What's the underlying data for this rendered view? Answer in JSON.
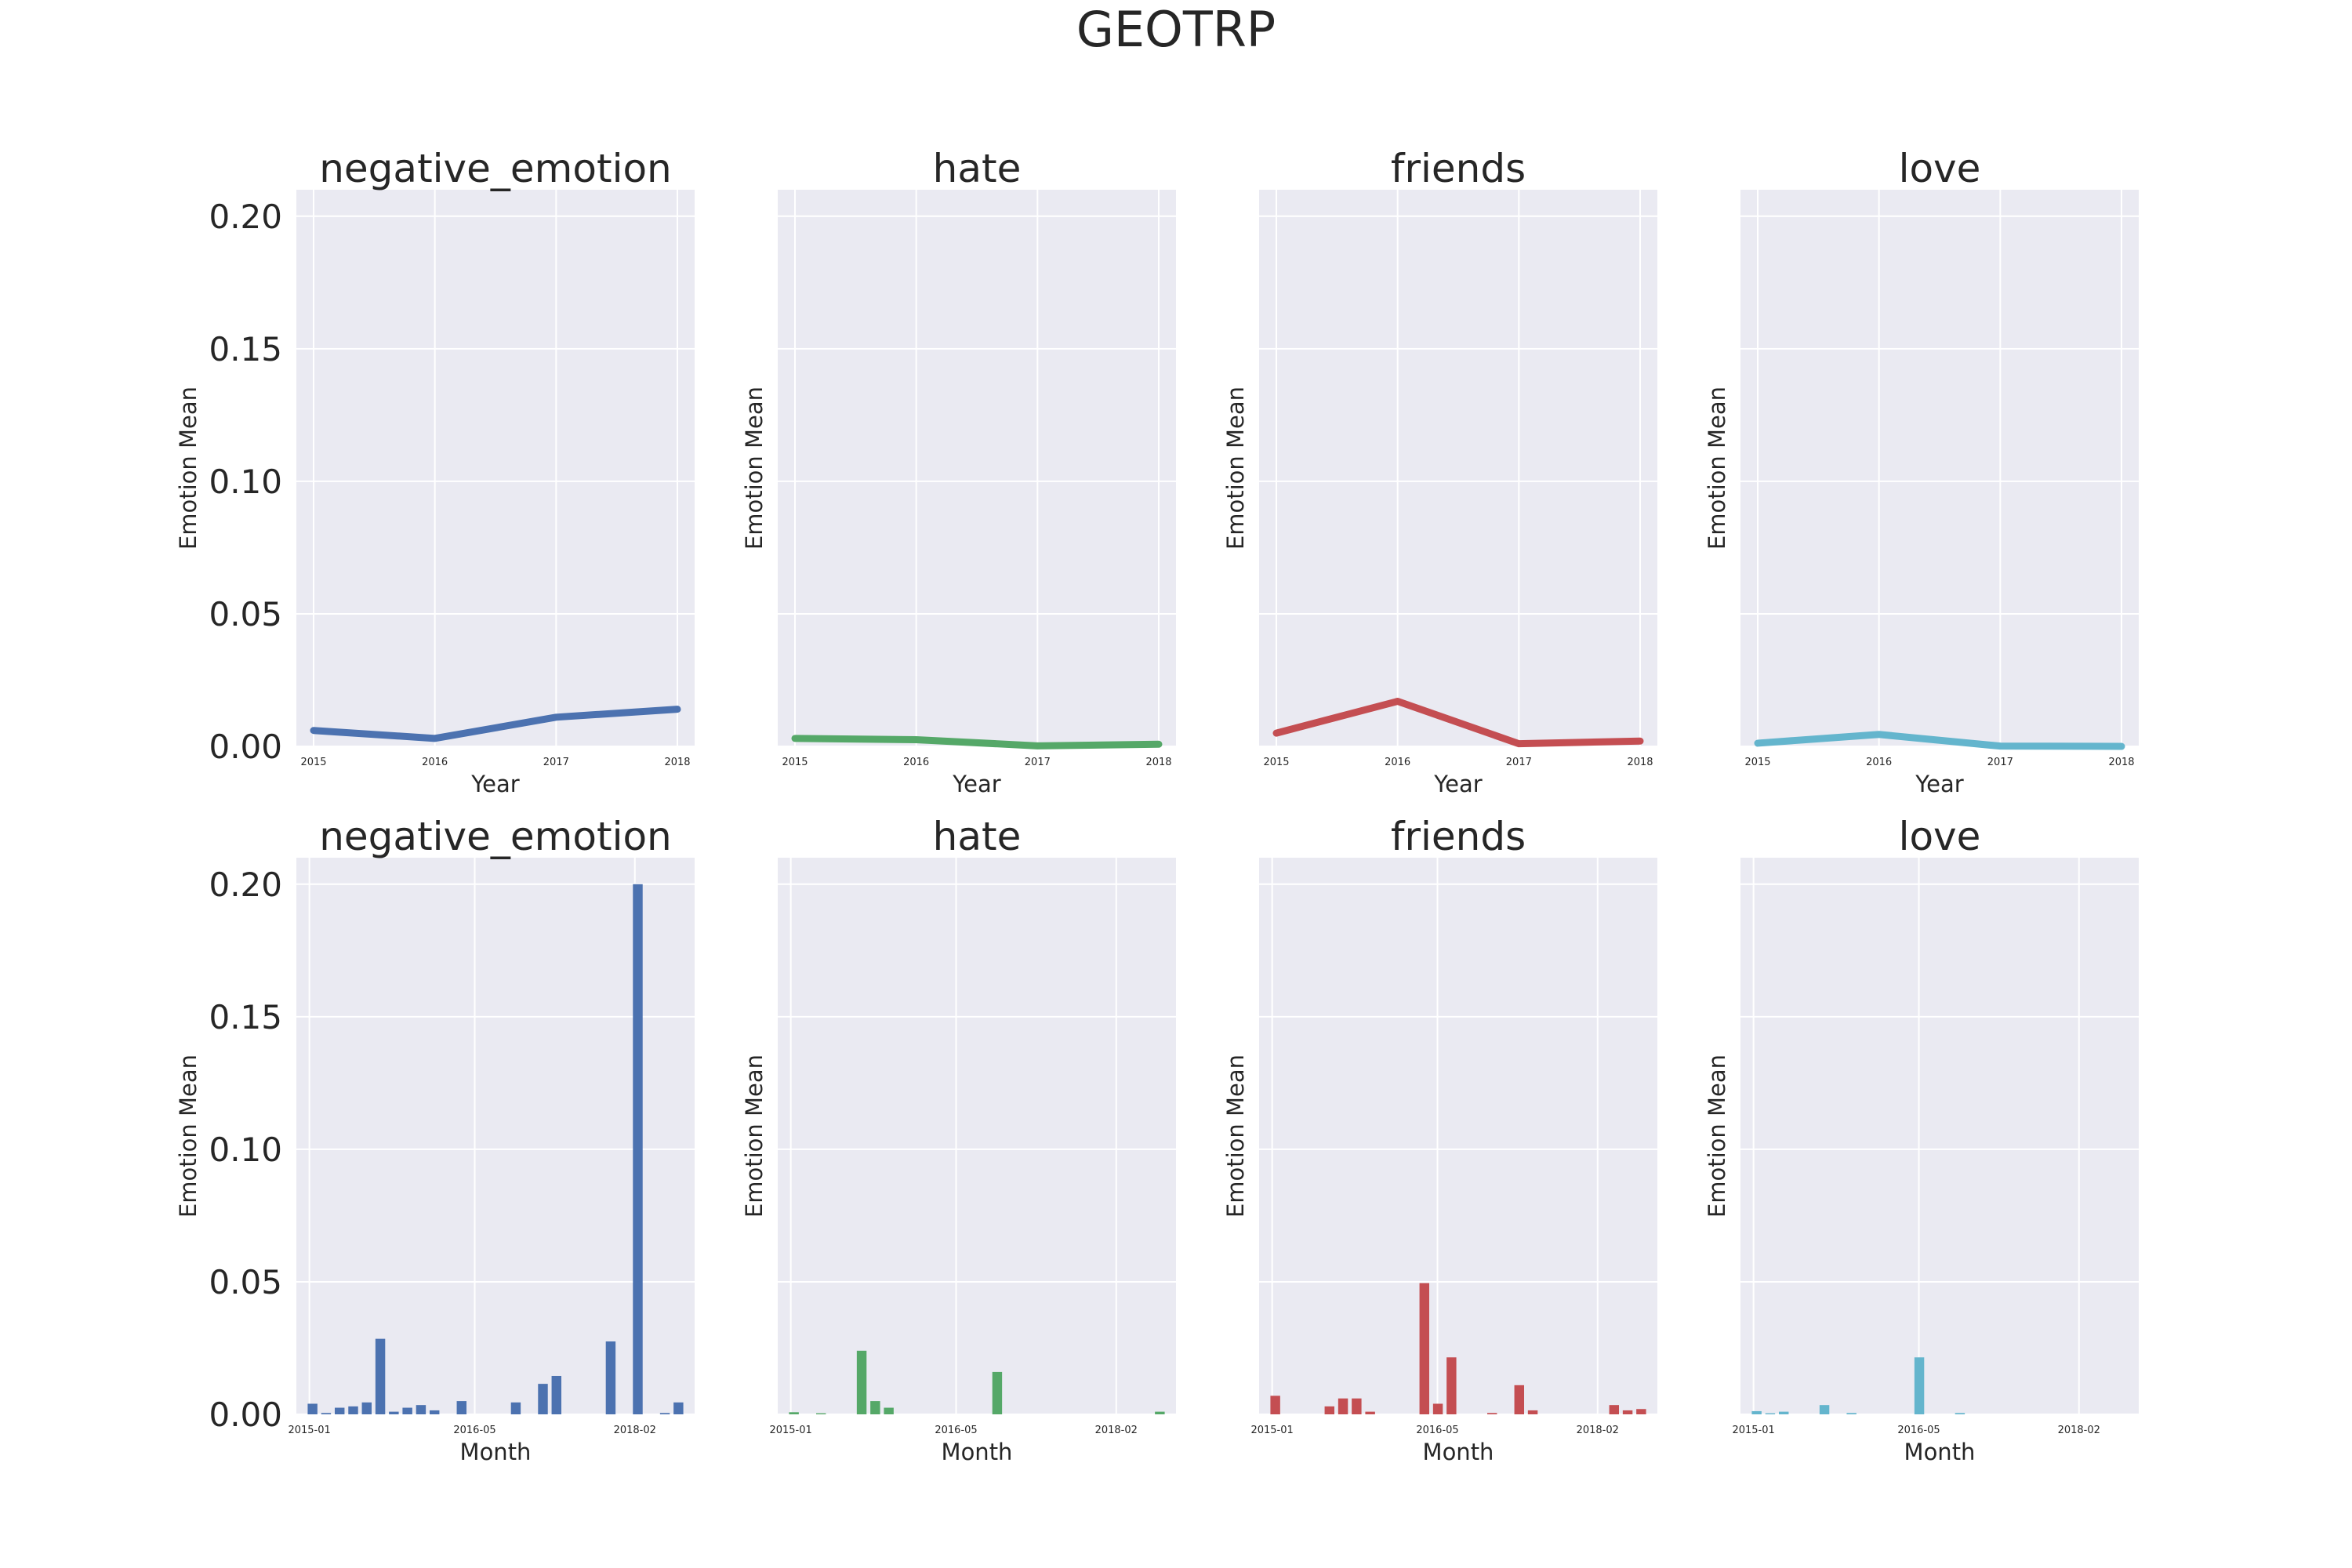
{
  "figure": {
    "title": "GEOTRP"
  },
  "colors": {
    "negative_emotion": "#4c72b0",
    "hate": "#55a868",
    "friends": "#c44e52",
    "love": "#64b5cd",
    "axes_bg": "#eaeaf2",
    "grid": "#ffffff"
  },
  "chart_data": [
    {
      "type": "line",
      "title": "negative_emotion",
      "xlabel": "Year",
      "ylabel": "Emotion Mean",
      "x": [
        "2015",
        "2016",
        "2017",
        "2018"
      ],
      "values": [
        0.006,
        0.003,
        0.011,
        0.014
      ],
      "ylim": [
        0,
        0.21
      ],
      "yticks": [
        "0.00",
        "0.05",
        "0.10",
        "0.15",
        "0.20"
      ],
      "show_ytick_labels": true,
      "grid": true
    },
    {
      "type": "line",
      "title": "hate",
      "xlabel": "Year",
      "ylabel": "Emotion Mean",
      "x": [
        "2015",
        "2016",
        "2017",
        "2018"
      ],
      "values": [
        0.003,
        0.0025,
        0.0002,
        0.0008
      ],
      "ylim": [
        0,
        0.21
      ],
      "yticks": [
        "0.00",
        "0.05",
        "0.10",
        "0.15",
        "0.20"
      ],
      "show_ytick_labels": false,
      "grid": true
    },
    {
      "type": "line",
      "title": "friends",
      "xlabel": "Year",
      "ylabel": "Emotion Mean",
      "x": [
        "2015",
        "2016",
        "2017",
        "2018"
      ],
      "values": [
        0.005,
        0.017,
        0.001,
        0.002
      ],
      "ylim": [
        0,
        0.21
      ],
      "yticks": [
        "0.00",
        "0.05",
        "0.10",
        "0.15",
        "0.20"
      ],
      "show_ytick_labels": false,
      "grid": true
    },
    {
      "type": "line",
      "title": "love",
      "xlabel": "Year",
      "ylabel": "Emotion Mean",
      "x": [
        "2015",
        "2016",
        "2017",
        "2018"
      ],
      "values": [
        0.0012,
        0.0045,
        0.0001,
        0.0
      ],
      "ylim": [
        0,
        0.21
      ],
      "yticks": [
        "0.00",
        "0.05",
        "0.10",
        "0.15",
        "0.20"
      ],
      "show_ytick_labels": false,
      "grid": true
    },
    {
      "type": "bar",
      "title": "negative_emotion",
      "xlabel": "Month",
      "ylabel": "Emotion Mean",
      "xticks": [
        "2015-01",
        "2016-05",
        "2018-02"
      ],
      "values": [
        0.004,
        0.0005,
        0.0025,
        0.003,
        0.0045,
        0.0285,
        0.001,
        0.0025,
        0.0035,
        0.0015,
        0,
        0.005,
        0,
        0,
        0,
        0.0045,
        0,
        0.0115,
        0.0145,
        0,
        0,
        0,
        0.0275,
        0,
        0.2,
        0,
        0.0005,
        0.0045
      ],
      "ylim": [
        0,
        0.21
      ],
      "yticks": [
        "0.00",
        "0.05",
        "0.10",
        "0.15",
        "0.20"
      ],
      "show_ytick_labels": true,
      "grid": true
    },
    {
      "type": "bar",
      "title": "hate",
      "xlabel": "Month",
      "ylabel": "Emotion Mean",
      "xticks": [
        "2015-01",
        "2016-05",
        "2018-02"
      ],
      "values": [
        0.0008,
        0,
        0.0004,
        0,
        0,
        0.024,
        0.005,
        0.0025,
        0,
        0,
        0,
        0,
        0,
        0,
        0,
        0.016,
        0,
        0,
        0,
        0,
        0,
        0,
        0,
        0,
        0,
        0,
        0,
        0.001
      ],
      "ylim": [
        0,
        0.21
      ],
      "yticks": [
        "0.00",
        "0.05",
        "0.10",
        "0.15",
        "0.20"
      ],
      "show_ytick_labels": false,
      "grid": true
    },
    {
      "type": "bar",
      "title": "friends",
      "xlabel": "Month",
      "ylabel": "Emotion Mean",
      "xticks": [
        "2015-01",
        "2016-05",
        "2018-02"
      ],
      "values": [
        0.007,
        0,
        0,
        0,
        0.003,
        0.006,
        0.006,
        0.001,
        0,
        0,
        0,
        0.0495,
        0.004,
        0.0215,
        0,
        0,
        0.0005,
        0,
        0.011,
        0.0015,
        0,
        0,
        0,
        0,
        0,
        0.0035,
        0.0015,
        0.002
      ],
      "ylim": [
        0,
        0.21
      ],
      "yticks": [
        "0.00",
        "0.05",
        "0.10",
        "0.15",
        "0.20"
      ],
      "show_ytick_labels": false,
      "grid": true
    },
    {
      "type": "bar",
      "title": "love",
      "xlabel": "Month",
      "ylabel": "Emotion Mean",
      "xticks": [
        "2015-01",
        "2016-05",
        "2018-02"
      ],
      "values": [
        0.0012,
        0.0004,
        0.001,
        0,
        0,
        0.0035,
        0,
        0.0005,
        0,
        0,
        0,
        0,
        0.0215,
        0,
        0,
        0.0005,
        0,
        0,
        0,
        0,
        0,
        0,
        0,
        0,
        0,
        0,
        0,
        0
      ],
      "ylim": [
        0,
        0.21
      ],
      "yticks": [
        "0.00",
        "0.05",
        "0.10",
        "0.15",
        "0.20"
      ],
      "show_ytick_labels": false,
      "grid": true
    }
  ]
}
